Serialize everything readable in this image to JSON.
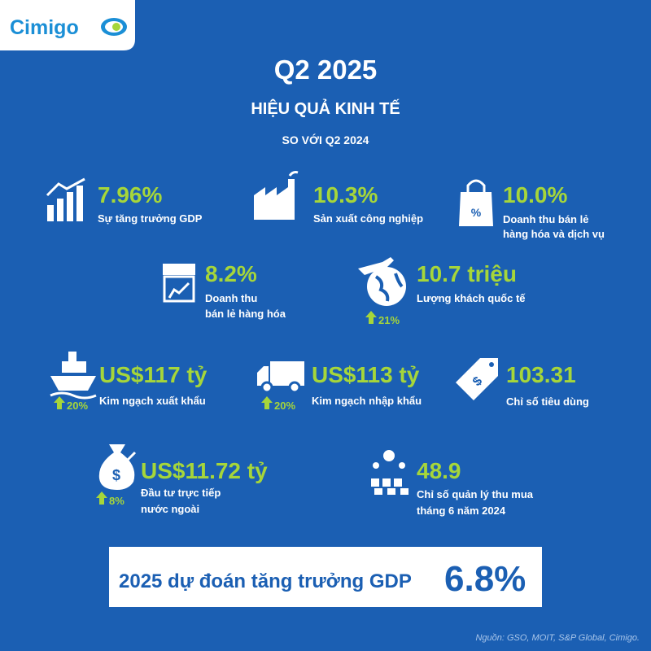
{
  "header": {
    "logo": "Cimigo",
    "title": "Q2 2025",
    "subtitle": "HIỆU QUẢ KINH TẾ",
    "comparison": "SO VỚI Q2 2024"
  },
  "items": [
    {
      "value": "7.96%",
      "label": [
        "Sự tăng trưởng GDP"
      ]
    },
    {
      "value": "10.3%",
      "label": [
        "Sản xuất công nghiệp"
      ]
    },
    {
      "value": "10.0%",
      "label": [
        "Doanh thu bán lẻ",
        "hàng hóa và dịch vụ"
      ]
    },
    {
      "value": "8.2%",
      "label": [
        "Doanh thu",
        "bán lẻ hàng hóa"
      ]
    },
    {
      "value": "10.7 triệu",
      "label": [
        "Lượng khách quốc tế"
      ],
      "change": "21%"
    },
    {
      "value": "US$117 tỷ",
      "label": [
        "Kim ngạch xuất khẩu"
      ],
      "change": "20%"
    },
    {
      "value": "US$113 tỷ",
      "label": [
        "Kim ngạch nhập khẩu"
      ],
      "change": "20%"
    },
    {
      "value": "103.31",
      "label": [
        "Chỉ số tiêu dùng"
      ]
    },
    {
      "value": "US$11.72 tỷ",
      "label": [
        "Đầu tư trực tiếp",
        "nước ngoài"
      ],
      "change": "8%"
    },
    {
      "value": "48.9",
      "label": [
        "Chỉ số quản lý thu mua",
        "tháng 6 năm 2024"
      ]
    }
  ],
  "forecast": {
    "text": "2025 dự đoán tăng trưởng GDP",
    "value": "6.8%"
  },
  "source": "Nguồn: GSO, MOIT, S&P Global, Cimigo."
}
